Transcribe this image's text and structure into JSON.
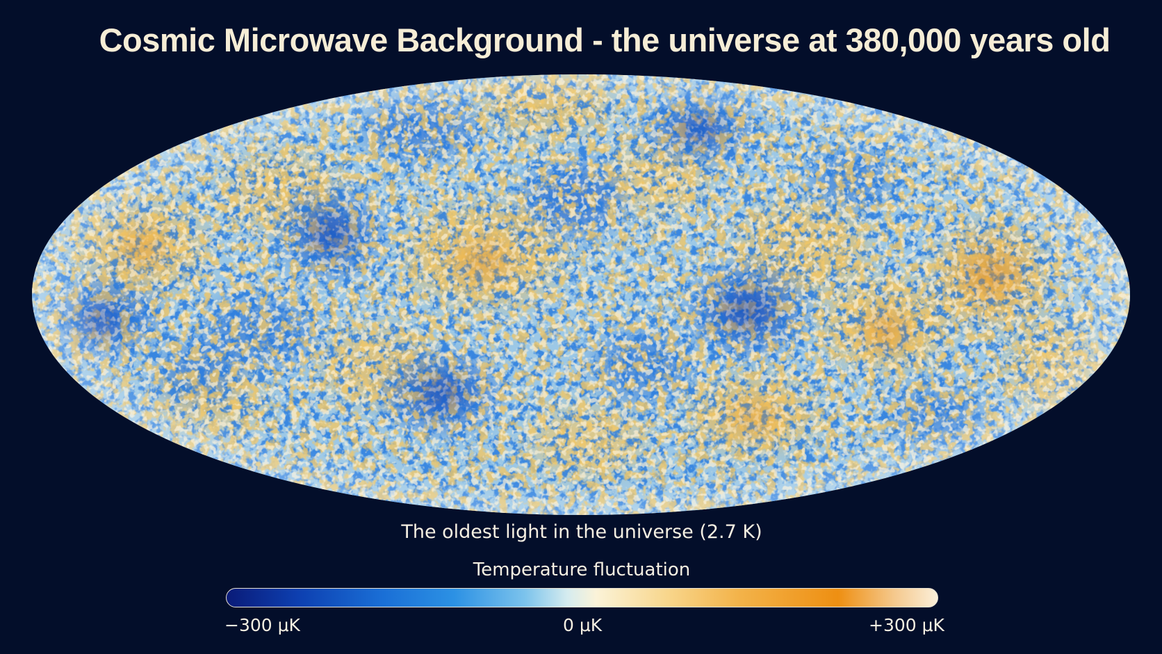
{
  "title": "Cosmic Microwave Background - the universe at 380,000 years old",
  "subtitle": "The oldest light in the universe (2.7 K)",
  "colorbar": {
    "title": "Temperature fluctuation",
    "ticks": [
      "−300 μK",
      "0 μK",
      "+300 μK"
    ],
    "colors": [
      "#0a1b78",
      "#1a6fd6",
      "#7cc3ec",
      "#fbf3d8",
      "#f3b34a",
      "#ee8f12",
      "#fbefd9"
    ]
  },
  "map": {
    "projection": "Mollweide (elliptical all-sky)",
    "palette": {
      "base": "#8fc4e8",
      "cold": "#1f5fcf",
      "cold_deep": "#0e3aa8",
      "warm": "#f0c46a",
      "hot": "#e8961c",
      "background": "#030e2a"
    }
  }
}
